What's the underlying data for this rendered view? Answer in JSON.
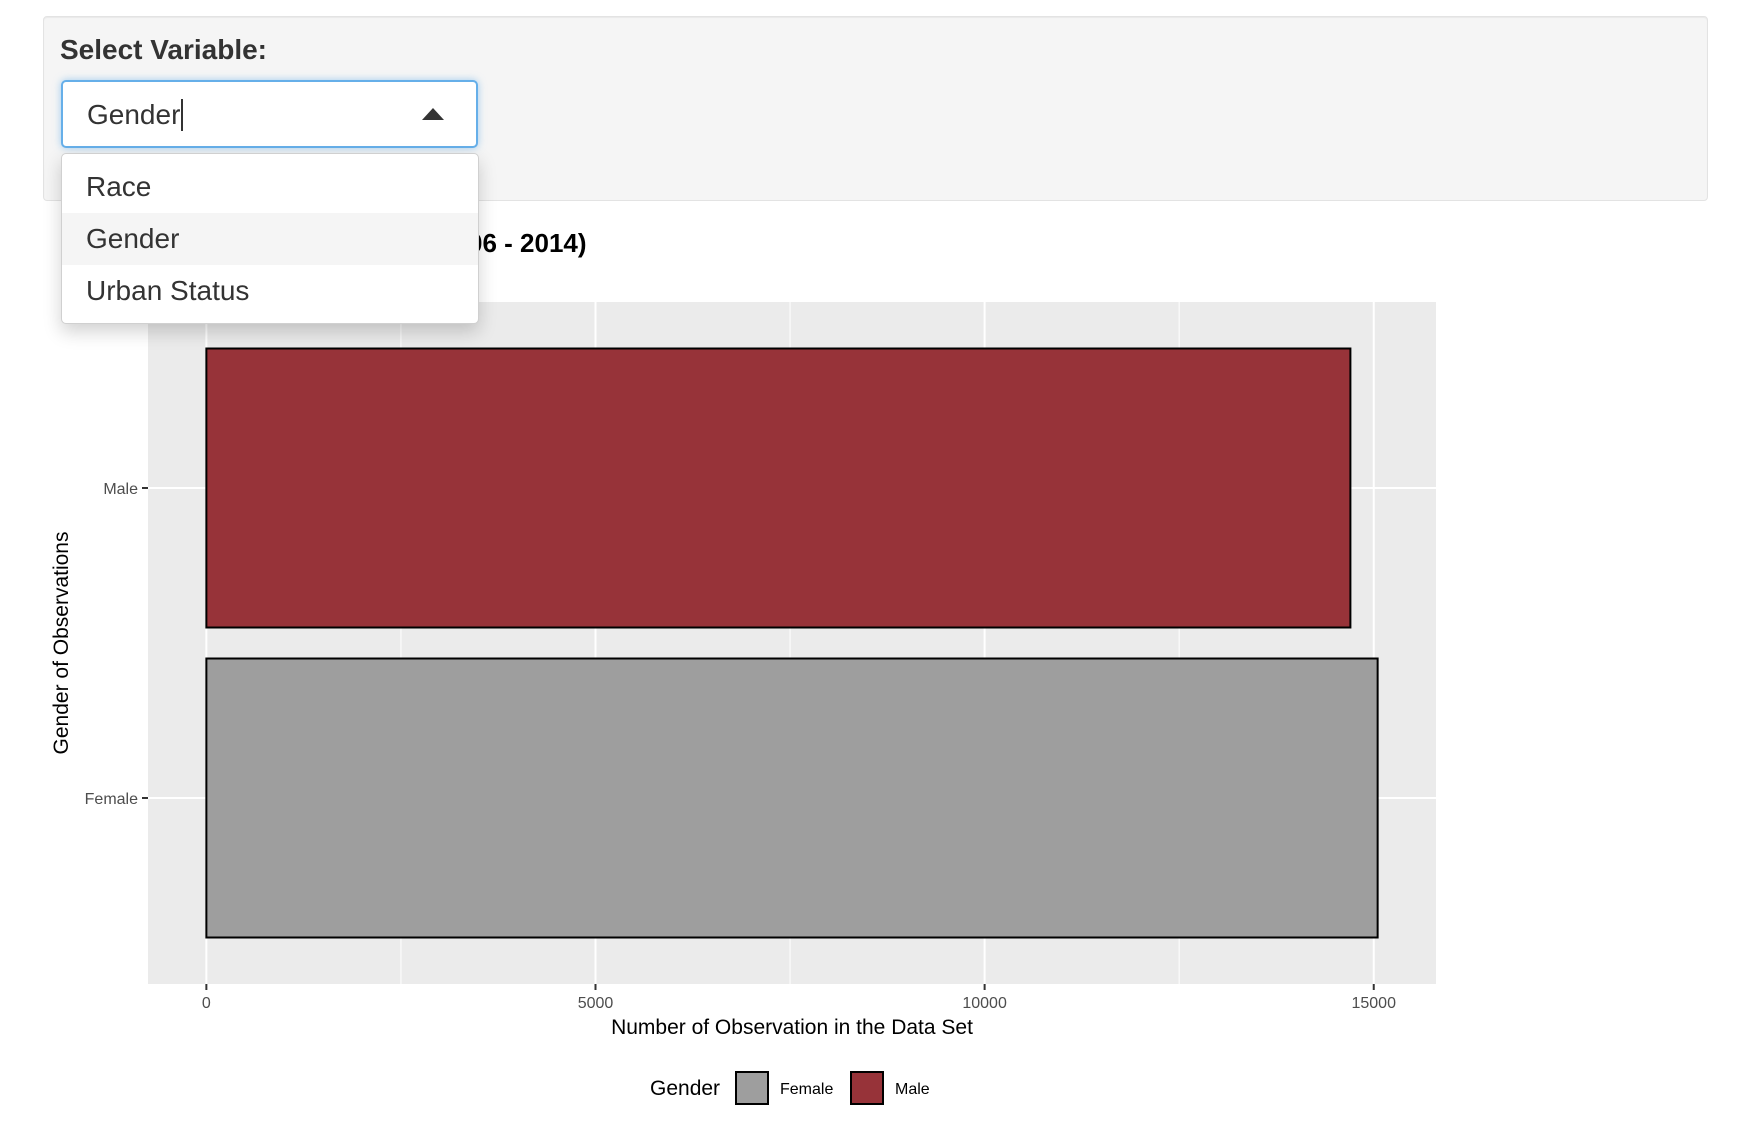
{
  "control": {
    "label": "Select Variable:",
    "value": "Gender",
    "options": [
      "Race",
      "Gender",
      "Urban Status"
    ],
    "active_option": "Gender"
  },
  "colors": {
    "focus_border": "#66afe9",
    "panel_bg": "#ebebeb",
    "grid": "#ffffff",
    "female": "#9e9e9e",
    "male": "#973339"
  },
  "chart_data": {
    "type": "bar",
    "orientation": "horizontal",
    "title_visible": "06 - 2014)",
    "categories": [
      "Female",
      "Male"
    ],
    "values": [
      15050,
      14700
    ],
    "xlabel": "Number of Observation in the Data Set",
    "ylabel": "Gender of Observations",
    "xlim": [
      -750,
      15800
    ],
    "xticks": [
      0,
      5000,
      10000,
      15000
    ],
    "grid": true,
    "legend": {
      "title": "Gender",
      "position": "bottom",
      "entries": [
        {
          "label": "Female",
          "color": "#9e9e9e"
        },
        {
          "label": "Male",
          "color": "#973339"
        }
      ]
    }
  }
}
